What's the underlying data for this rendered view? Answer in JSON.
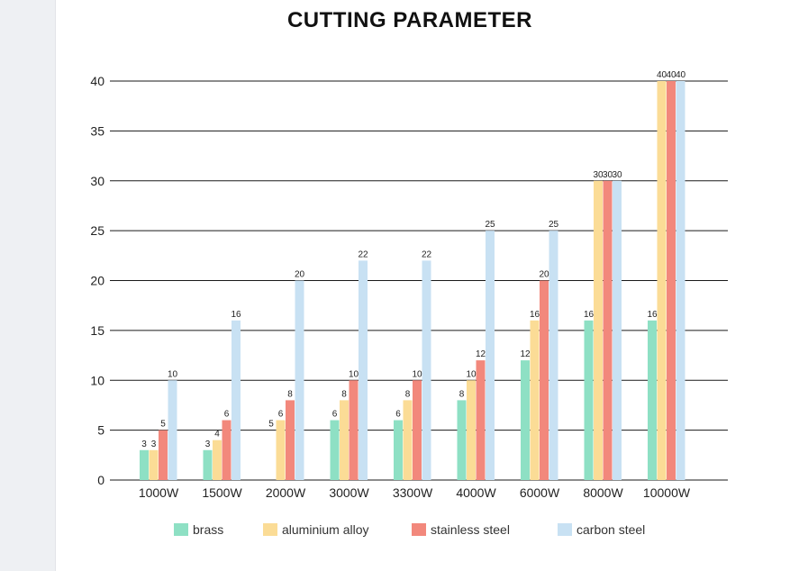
{
  "chart_data": {
    "type": "bar",
    "title": "CUTTING PARAMETER",
    "xlabel": "",
    "ylabel": "",
    "ylim": [
      0,
      40
    ],
    "yticks": [
      0,
      5,
      10,
      15,
      20,
      25,
      30,
      35,
      40
    ],
    "grid": true,
    "legend_position": "bottom",
    "categories": [
      "1000W",
      "1500W",
      "2000W",
      "3000W",
      "3300W",
      "4000W",
      "6000W",
      "8000W",
      "10000W"
    ],
    "series": [
      {
        "name": "brass",
        "color": "#8ee0c4",
        "values": [
          3,
          3,
          null,
          6,
          6,
          8,
          12,
          16,
          16
        ],
        "labels": [
          "3",
          "3",
          "5",
          "6",
          "6",
          "8",
          "12",
          "16",
          "16"
        ]
      },
      {
        "name": "aluminium alloy",
        "color": "#fbdc96",
        "values": [
          3,
          4,
          6,
          8,
          8,
          10,
          16,
          30,
          40
        ],
        "labels": [
          "3",
          "4",
          "6",
          "8",
          "8",
          "10",
          "16",
          "30",
          "40"
        ]
      },
      {
        "name": "stainless steel",
        "color": "#f2887c",
        "values": [
          5,
          6,
          8,
          10,
          10,
          12,
          20,
          30,
          40
        ],
        "labels": [
          "5",
          "6",
          "8",
          "10",
          "10",
          "12",
          "20",
          "30",
          "40"
        ]
      },
      {
        "name": "carbon steel",
        "color": "#c8e1f3",
        "values": [
          10,
          16,
          20,
          22,
          22,
          25,
          25,
          30,
          40
        ],
        "labels": [
          "10",
          "16",
          "20",
          "22",
          "22",
          "25",
          "25",
          "30",
          "40"
        ]
      }
    ],
    "brass_2000W_value": 5
  }
}
